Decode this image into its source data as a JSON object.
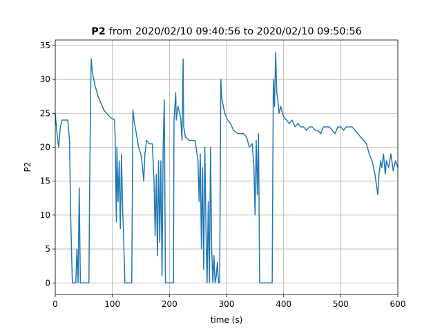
{
  "chart_data": {
    "type": "line",
    "title_parts": [
      "P2",
      "from 2020/02/10 09:40:56 to 2020/02/10 09:50:56"
    ],
    "x_label": "time (s)",
    "y_label": "P2",
    "xlim": [
      0,
      600
    ],
    "xticks": [
      0,
      100,
      200,
      300,
      400,
      500,
      600
    ],
    "ylim": [
      -1.7,
      35.8
    ],
    "yticks": [
      0,
      5,
      10,
      15,
      20,
      25,
      30,
      35
    ],
    "grid": true,
    "series": [
      {
        "name": "P2",
        "color": "#1f77b4",
        "x": [
          0,
          3,
          6,
          9,
          12,
          18,
          22,
          25,
          27,
          29,
          30,
          33,
          36,
          38,
          40,
          42,
          44,
          46,
          50,
          55,
          59,
          60,
          62,
          63,
          65,
          70,
          75,
          80,
          85,
          90,
          95,
          100,
          104,
          105,
          107,
          108,
          110,
          112,
          114,
          116,
          118,
          120,
          122,
          125,
          130,
          134,
          136,
          138,
          142,
          146,
          150,
          153,
          155,
          157,
          160,
          165,
          170,
          173,
          175,
          177,
          179,
          181,
          183,
          185,
          187,
          189,
          191,
          193,
          196,
          200,
          205,
          207,
          208,
          211,
          212,
          215,
          218,
          220,
          222,
          224,
          225,
          228,
          235,
          240,
          245,
          250,
          252,
          254,
          256,
          258,
          260,
          262,
          264,
          266,
          268,
          270,
          272,
          274,
          276,
          278,
          280,
          282,
          284,
          286,
          288,
          290,
          292,
          297,
          302,
          307,
          312,
          320,
          330,
          335,
          340,
          345,
          348,
          350,
          352,
          354,
          356,
          358,
          360,
          370,
          378,
          380,
          382,
          384,
          386,
          388,
          390,
          392,
          395,
          398,
          400,
          405,
          410,
          415,
          420,
          425,
          430,
          435,
          440,
          445,
          450,
          455,
          460,
          465,
          470,
          475,
          480,
          485,
          490,
          495,
          500,
          505,
          510,
          515,
          520,
          525,
          530,
          535,
          540,
          545,
          550,
          555,
          560,
          565,
          567,
          570,
          572,
          575,
          578,
          580,
          584,
          588,
          592,
          596,
          600
        ],
        "values": [
          25,
          22,
          20,
          23,
          24,
          24,
          24,
          21,
          10,
          3,
          0,
          0,
          0,
          5,
          0,
          14,
          0,
          0,
          0,
          0,
          0,
          12,
          28,
          33,
          31,
          29,
          27.5,
          26.5,
          25.5,
          25,
          24.5,
          24.2,
          24,
          21,
          9,
          20,
          12,
          18,
          8,
          19,
          11,
          6,
          0,
          0,
          0,
          0,
          25.5,
          24,
          22,
          20,
          19,
          17,
          15,
          19,
          21,
          20.5,
          20.5,
          15,
          7,
          16,
          4,
          18,
          6,
          18,
          1,
          20,
          27,
          0,
          0,
          0,
          0,
          0,
          24,
          28,
          24,
          26,
          25,
          24,
          21,
          33,
          23,
          21.5,
          21,
          21,
          21,
          18,
          12,
          19,
          5,
          17,
          2,
          20,
          8,
          0,
          12,
          0,
          20,
          5,
          0,
          4,
          0,
          1,
          3,
          0,
          0,
          30,
          27,
          25,
          24,
          23.5,
          22.5,
          22,
          22,
          21.5,
          20,
          20.5,
          17,
          10,
          21,
          13,
          22,
          0,
          0,
          0,
          0,
          0,
          30,
          26,
          34,
          28,
          27,
          25,
          26,
          25,
          24.5,
          24,
          23.5,
          24,
          23,
          23.5,
          23,
          23,
          22.5,
          23,
          23,
          22.5,
          22.5,
          22,
          23,
          23,
          23,
          22.5,
          22,
          23,
          23,
          22.5,
          23,
          23,
          23,
          22.5,
          22,
          21.5,
          21,
          20.5,
          19,
          18,
          16,
          13,
          16,
          18,
          17,
          19,
          16,
          18,
          17,
          19,
          16.5,
          18,
          17
        ]
      }
    ]
  }
}
